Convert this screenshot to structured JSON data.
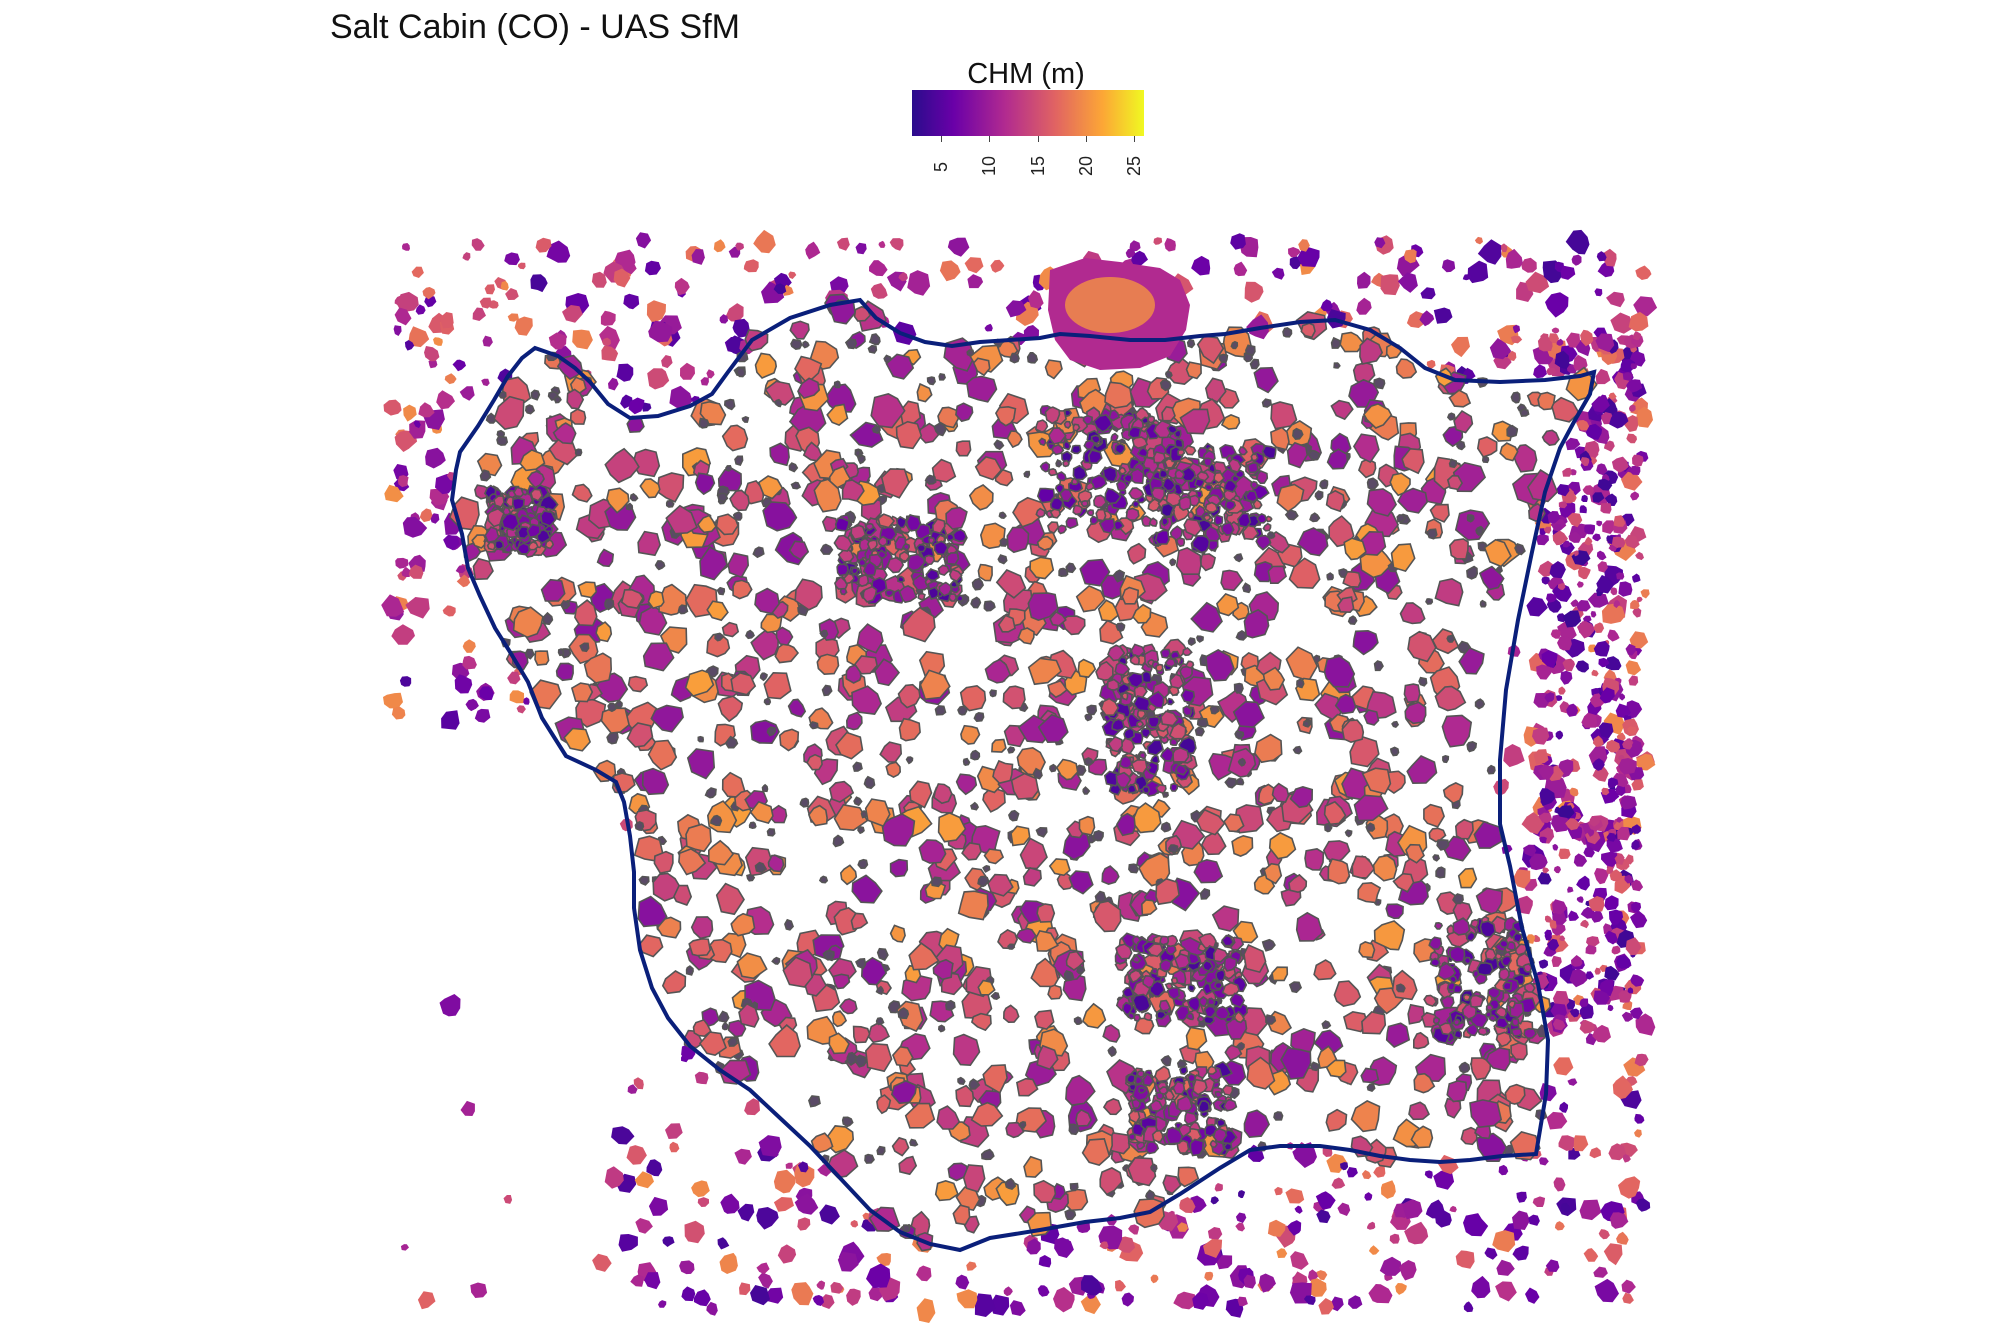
{
  "title": "Salt Cabin (CO) - UAS SfM",
  "legend": {
    "title": "CHM (m)",
    "ticks": [
      5,
      10,
      15,
      20,
      25
    ],
    "min": 2,
    "max": 26,
    "colors": [
      "#2a0c8c",
      "#6a00a8",
      "#b12a90",
      "#e16462",
      "#fca636",
      "#f0f921"
    ]
  },
  "map": {
    "boundary_color": "#0a1f7a",
    "crown_outline_color": "#555555",
    "background": "#ffffff"
  }
}
